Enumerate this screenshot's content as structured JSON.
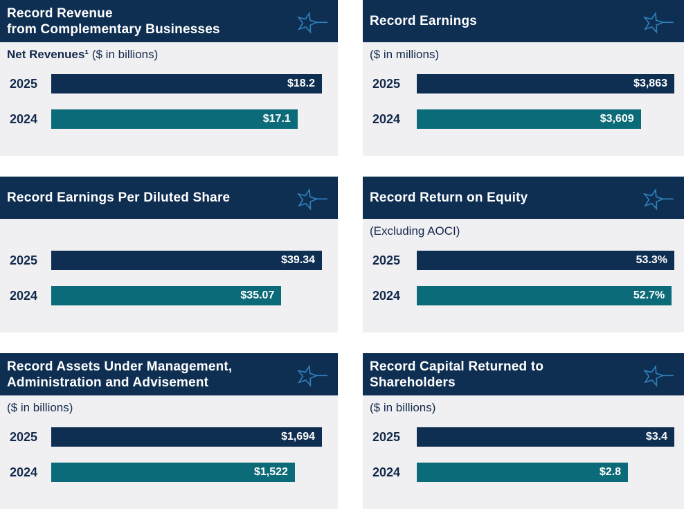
{
  "theme": {
    "page_bg": "#ffffff",
    "panel_bg": "#f0f0f2",
    "header_bg": "#0e2e52",
    "bar_2025": "#0e2e52",
    "bar_2024": "#0c6b78",
    "text_navy": "#13294b",
    "value_text": "#ffffff",
    "star": "#2e80b9"
  },
  "icons": {
    "star": "star-with-tail-outline-icon"
  },
  "panels": [
    {
      "name": "revenue",
      "title_lines": [
        "Record Revenue",
        "from Complementary Businesses"
      ],
      "subtitle_bold": "Net Revenues¹",
      "subtitle_rest": " ($ in billions)",
      "bars": [
        {
          "year": "2025",
          "value_label": "$18.2",
          "width_pct": 100
        },
        {
          "year": "2024",
          "value_label": "$17.1",
          "width_pct": 91
        }
      ]
    },
    {
      "name": "earnings",
      "title_lines": [
        "Record Earnings"
      ],
      "subtitle_bold": "",
      "subtitle_rest": "($ in millions)",
      "bars": [
        {
          "year": "2025",
          "value_label": "$3,863",
          "width_pct": 100
        },
        {
          "year": "2024",
          "value_label": "$3,609",
          "width_pct": 87
        }
      ]
    },
    {
      "name": "eps",
      "title_lines": [
        "Record Earnings Per Diluted Share"
      ],
      "subtitle_bold": "",
      "subtitle_rest": "",
      "bars": [
        {
          "year": "2025",
          "value_label": "$39.34",
          "width_pct": 100
        },
        {
          "year": "2024",
          "value_label": "$35.07",
          "width_pct": 85
        }
      ]
    },
    {
      "name": "roe",
      "title_lines": [
        "Record Return on Equity"
      ],
      "subtitle_bold": "",
      "subtitle_rest": "(Excluding AOCI)",
      "bars": [
        {
          "year": "2025",
          "value_label": "53.3%",
          "width_pct": 100
        },
        {
          "year": "2024",
          "value_label": "52.7%",
          "width_pct": 99
        }
      ]
    },
    {
      "name": "aum",
      "title_lines": [
        "Record Assets Under Management,",
        "Administration and Advisement"
      ],
      "subtitle_bold": "",
      "subtitle_rest": "($ in billions)",
      "bars": [
        {
          "year": "2025",
          "value_label": "$1,694",
          "width_pct": 100
        },
        {
          "year": "2024",
          "value_label": "$1,522",
          "width_pct": 90
        }
      ]
    },
    {
      "name": "capital_returned",
      "title_lines": [
        "Record Capital Returned to",
        "Shareholders"
      ],
      "subtitle_bold": "",
      "subtitle_rest": "($ in billions)",
      "bars": [
        {
          "year": "2025",
          "value_label": "$3.4",
          "width_pct": 100
        },
        {
          "year": "2024",
          "value_label": "$2.8",
          "width_pct": 82
        }
      ]
    }
  ],
  "chart_data": [
    {
      "type": "bar",
      "orientation": "horizontal",
      "title": "Record Revenue from Complementary Businesses",
      "subtitle": "Net Revenues¹ ($ in billions)",
      "categories": [
        "2025",
        "2024"
      ],
      "values": [
        18.2,
        17.1
      ],
      "data_labels": [
        "$18.2",
        "$17.1"
      ],
      "unit": "$ billions",
      "bar_colors": [
        "#0e2e52",
        "#0c6b78"
      ],
      "grid": false,
      "legend": false
    },
    {
      "type": "bar",
      "orientation": "horizontal",
      "title": "Record Earnings",
      "subtitle": "($ in millions)",
      "categories": [
        "2025",
        "2024"
      ],
      "values": [
        3863,
        3609
      ],
      "data_labels": [
        "$3,863",
        "$3,609"
      ],
      "unit": "$ millions",
      "bar_colors": [
        "#0e2e52",
        "#0c6b78"
      ],
      "grid": false,
      "legend": false
    },
    {
      "type": "bar",
      "orientation": "horizontal",
      "title": "Record Earnings Per Diluted Share",
      "subtitle": "",
      "categories": [
        "2025",
        "2024"
      ],
      "values": [
        39.34,
        35.07
      ],
      "data_labels": [
        "$39.34",
        "$35.07"
      ],
      "unit": "$ per diluted share",
      "bar_colors": [
        "#0e2e52",
        "#0c6b78"
      ],
      "grid": false,
      "legend": false
    },
    {
      "type": "bar",
      "orientation": "horizontal",
      "title": "Record Return on Equity",
      "subtitle": "(Excluding AOCI)",
      "categories": [
        "2025",
        "2024"
      ],
      "values": [
        53.3,
        52.7
      ],
      "data_labels": [
        "53.3%",
        "52.7%"
      ],
      "unit": "%",
      "bar_colors": [
        "#0e2e52",
        "#0c6b78"
      ],
      "grid": false,
      "legend": false
    },
    {
      "type": "bar",
      "orientation": "horizontal",
      "title": "Record Assets Under Management, Administration and Advisement",
      "subtitle": "($ in billions)",
      "categories": [
        "2025",
        "2024"
      ],
      "values": [
        1694,
        1522
      ],
      "data_labels": [
        "$1,694",
        "$1,522"
      ],
      "unit": "$ billions",
      "bar_colors": [
        "#0e2e52",
        "#0c6b78"
      ],
      "grid": false,
      "legend": false
    },
    {
      "type": "bar",
      "orientation": "horizontal",
      "title": "Record Capital Returned to Shareholders",
      "subtitle": "($ in billions)",
      "categories": [
        "2025",
        "2024"
      ],
      "values": [
        3.4,
        2.8
      ],
      "data_labels": [
        "$3.4",
        "$2.8"
      ],
      "unit": "$ billions",
      "bar_colors": [
        "#0e2e52",
        "#0c6b78"
      ],
      "grid": false,
      "legend": false
    }
  ]
}
